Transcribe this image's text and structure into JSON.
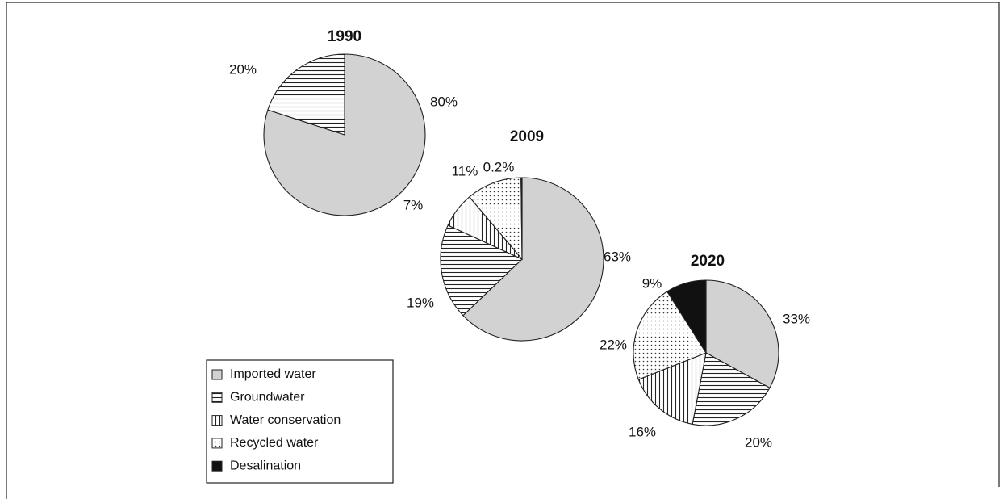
{
  "chart_data": [
    {
      "type": "pie",
      "title": "1990",
      "categories": [
        "Imported water",
        "Groundwater"
      ],
      "values": [
        80,
        20
      ],
      "value_labels": [
        "80%",
        "20%"
      ]
    },
    {
      "type": "pie",
      "title": "2009",
      "categories": [
        "Imported water",
        "Groundwater",
        "Water conservation",
        "Recycled water",
        "Desalination"
      ],
      "values": [
        63,
        19,
        7,
        11,
        0.2
      ],
      "value_labels": [
        "63%",
        "19%",
        "7%",
        "11%",
        "0.2%"
      ]
    },
    {
      "type": "pie",
      "title": "2020",
      "categories": [
        "Imported water",
        "Groundwater",
        "Water conservation",
        "Recycled water",
        "Desalination"
      ],
      "values": [
        33,
        20,
        16,
        22,
        9
      ],
      "value_labels": [
        "33%",
        "20%",
        "16%",
        "22%",
        "9%"
      ]
    }
  ],
  "legend": {
    "entries": [
      "Imported water",
      "Groundwater",
      "Water conservation",
      "Recycled water",
      "Desalination"
    ]
  }
}
